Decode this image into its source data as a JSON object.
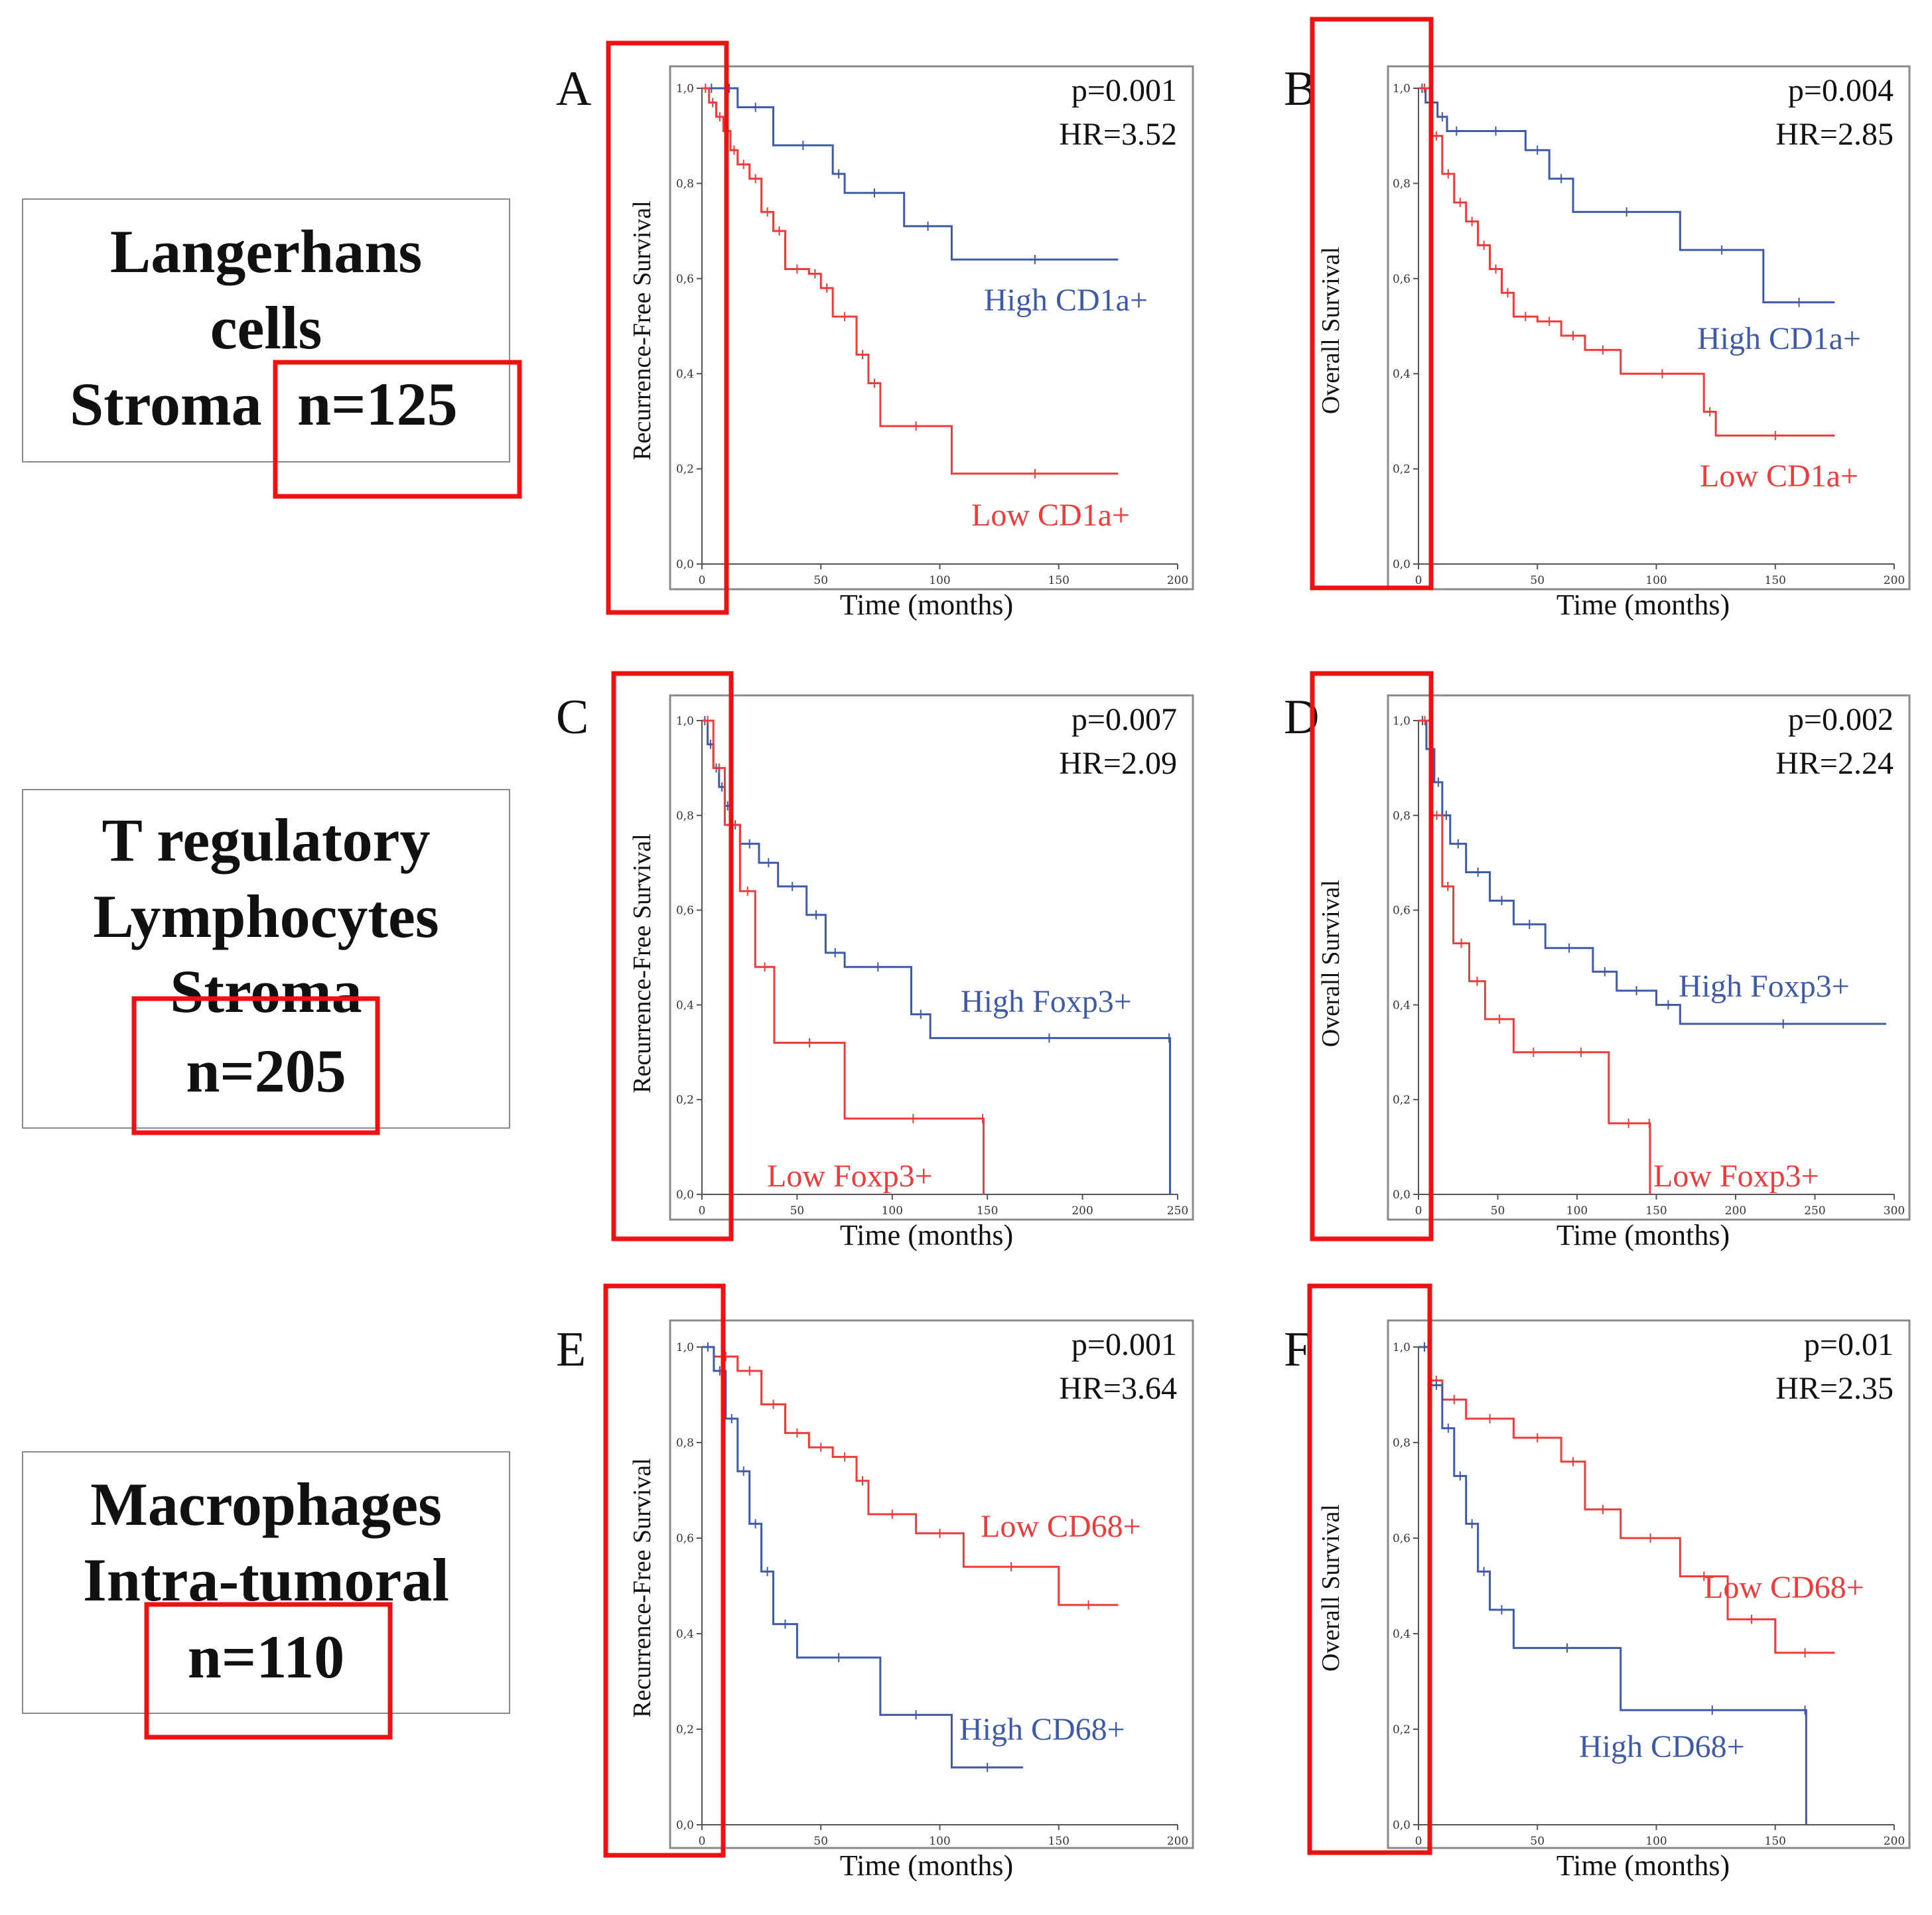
{
  "colors": {
    "red": "#ee3b3b",
    "blue": "#3f5aa6",
    "highlight": "#ee1111",
    "frame": "#8a8a8a"
  },
  "rows": [
    {
      "lines": [
        "Langerhans",
        "cells",
        "Stroma"
      ],
      "n": "n=125"
    },
    {
      "lines": [
        "T regulatory",
        "Lymphocytes",
        "Stroma"
      ],
      "n": "n=205"
    },
    {
      "lines": [
        "Macrophages",
        "Intra-tumoral"
      ],
      "n": "n=110"
    }
  ],
  "chart_data": [
    {
      "panel": "A",
      "type": "line",
      "ylabel": "Recurrence-Free Survival",
      "xlabel": "Time (months)",
      "p": "p=0.001",
      "hr": "HR=3.52",
      "xlim": [
        0,
        200
      ],
      "xticks": [
        "0",
        "50",
        "100",
        "150",
        "200"
      ],
      "ylim": [
        0,
        1
      ],
      "yticks": [
        "0,0",
        "0,2",
        "0,4",
        "0,6",
        "0,8",
        "1,0"
      ],
      "series": [
        {
          "name": "High CD1a+",
          "color": "blue",
          "x": [
            0,
            8,
            15,
            30,
            55,
            60,
            85,
            105,
            175
          ],
          "y": [
            1.0,
            1.0,
            0.96,
            0.88,
            0.82,
            0.78,
            0.71,
            0.64,
            0.64
          ]
        },
        {
          "name": "Low CD1a+",
          "color": "red",
          "x": [
            0,
            3,
            6,
            9,
            12,
            15,
            20,
            25,
            30,
            35,
            45,
            50,
            55,
            65,
            70,
            75,
            105,
            175
          ],
          "y": [
            1.0,
            0.97,
            0.94,
            0.91,
            0.87,
            0.84,
            0.81,
            0.74,
            0.7,
            0.62,
            0.61,
            0.58,
            0.52,
            0.44,
            0.38,
            0.29,
            0.19,
            0.19
          ]
        }
      ]
    },
    {
      "panel": "B",
      "type": "line",
      "ylabel": "Overall Survival",
      "xlabel": "Time (months)",
      "p": "p=0.004",
      "hr": "HR=2.85",
      "xlim": [
        0,
        200
      ],
      "xticks": [
        "0",
        "50",
        "100",
        "150",
        "200"
      ],
      "ylim": [
        0,
        1
      ],
      "yticks": [
        "0,0",
        "0,2",
        "0,4",
        "0,6",
        "0,8",
        "1,0"
      ],
      "series": [
        {
          "name": "High CD1a+",
          "color": "blue",
          "x": [
            0,
            3,
            8,
            12,
            20,
            45,
            55,
            65,
            110,
            145,
            175
          ],
          "y": [
            1.0,
            0.97,
            0.94,
            0.91,
            0.91,
            0.87,
            0.81,
            0.74,
            0.66,
            0.55,
            0.55
          ]
        },
        {
          "name": "Low CD1a+",
          "color": "red",
          "x": [
            0,
            5,
            10,
            15,
            20,
            25,
            30,
            35,
            40,
            50,
            60,
            70,
            85,
            120,
            125,
            175
          ],
          "y": [
            1.0,
            0.9,
            0.82,
            0.76,
            0.72,
            0.67,
            0.62,
            0.57,
            0.52,
            0.51,
            0.48,
            0.45,
            0.4,
            0.32,
            0.27,
            0.27
          ]
        }
      ]
    },
    {
      "panel": "C",
      "type": "line",
      "ylabel": "Recurrence-Free Survival",
      "xlabel": "Time (months)",
      "p": "p=0.007",
      "hr": "HR=2.09",
      "xlim": [
        0,
        250
      ],
      "xticks": [
        "0",
        "50",
        "100",
        "150",
        "200",
        "250"
      ],
      "ylim": [
        0,
        1
      ],
      "yticks": [
        "0,0",
        "0,2",
        "0,4",
        "0,6",
        "0,8",
        "1,0"
      ],
      "series": [
        {
          "name": "High Foxp3+",
          "color": "blue",
          "x": [
            0,
            3,
            6,
            9,
            12,
            15,
            20,
            30,
            40,
            55,
            65,
            75,
            110,
            120,
            245,
            246
          ],
          "y": [
            1.0,
            0.95,
            0.9,
            0.86,
            0.82,
            0.78,
            0.74,
            0.7,
            0.65,
            0.59,
            0.51,
            0.48,
            0.38,
            0.33,
            0.33,
            0.0
          ]
        },
        {
          "name": "Low Foxp3+",
          "color": "red",
          "x": [
            0,
            6,
            12,
            20,
            28,
            38,
            75,
            147,
            148
          ],
          "y": [
            1.0,
            0.9,
            0.78,
            0.64,
            0.48,
            0.32,
            0.16,
            0.16,
            0.0
          ]
        }
      ]
    },
    {
      "panel": "D",
      "type": "line",
      "ylabel": "Overall Survival",
      "xlabel": "Time (months)",
      "p": "p=0.002",
      "hr": "HR=2.24",
      "xlim": [
        0,
        300
      ],
      "xticks": [
        "0",
        "50",
        "100",
        "150",
        "200",
        "250",
        "300"
      ],
      "ylim": [
        0,
        1
      ],
      "yticks": [
        "0,0",
        "0,2",
        "0,4",
        "0,6",
        "0,8",
        "1,0"
      ],
      "series": [
        {
          "name": "High Foxp3+",
          "color": "blue",
          "x": [
            0,
            5,
            10,
            15,
            20,
            30,
            45,
            60,
            80,
            110,
            125,
            150,
            165,
            295
          ],
          "y": [
            1.0,
            0.94,
            0.87,
            0.8,
            0.74,
            0.68,
            0.62,
            0.57,
            0.52,
            0.47,
            0.43,
            0.4,
            0.36,
            0.36
          ]
        },
        {
          "name": "Low Foxp3+",
          "color": "red",
          "x": [
            0,
            8,
            15,
            22,
            32,
            42,
            60,
            85,
            120,
            145,
            146
          ],
          "y": [
            1.0,
            0.8,
            0.65,
            0.53,
            0.45,
            0.37,
            0.3,
            0.3,
            0.15,
            0.15,
            0.0
          ]
        }
      ]
    },
    {
      "panel": "E",
      "type": "line",
      "ylabel": "Recurrence-Free Survival",
      "xlabel": "Time (months)",
      "p": "p=0.001",
      "hr": "HR=3.64",
      "xlim": [
        0,
        200
      ],
      "xticks": [
        "0",
        "50",
        "100",
        "150",
        "200"
      ],
      "ylim": [
        0,
        1
      ],
      "yticks": [
        "0,0",
        "0,2",
        "0,4",
        "0,6",
        "0,8",
        "1,0"
      ],
      "series": [
        {
          "name": "Low CD68+",
          "color": "red",
          "x": [
            0,
            5,
            15,
            25,
            35,
            45,
            55,
            65,
            70,
            90,
            110,
            150,
            175
          ],
          "y": [
            1.0,
            0.98,
            0.95,
            0.88,
            0.82,
            0.79,
            0.77,
            0.72,
            0.65,
            0.61,
            0.54,
            0.46,
            0.46
          ]
        },
        {
          "name": "High CD68+",
          "color": "blue",
          "x": [
            0,
            5,
            10,
            15,
            20,
            25,
            30,
            40,
            75,
            105,
            135
          ],
          "y": [
            1.0,
            0.95,
            0.85,
            0.74,
            0.63,
            0.53,
            0.42,
            0.35,
            0.23,
            0.12,
            0.12
          ]
        }
      ]
    },
    {
      "panel": "F",
      "type": "line",
      "ylabel": "Overall Survival",
      "xlabel": "Time (months)",
      "p": "p=0.01",
      "hr": "HR=2.35",
      "xlim": [
        0,
        200
      ],
      "xticks": [
        "0",
        "50",
        "100",
        "150",
        "200"
      ],
      "ylim": [
        0,
        1
      ],
      "yticks": [
        "0,0",
        "0,2",
        "0,4",
        "0,6",
        "0,8",
        "1,0"
      ],
      "series": [
        {
          "name": "Low CD68+",
          "color": "red",
          "x": [
            0,
            5,
            10,
            20,
            40,
            60,
            70,
            85,
            110,
            130,
            150,
            175
          ],
          "y": [
            1.0,
            0.93,
            0.89,
            0.85,
            0.81,
            0.76,
            0.66,
            0.6,
            0.52,
            0.43,
            0.36,
            0.36
          ]
        },
        {
          "name": "High CD68+",
          "color": "blue",
          "x": [
            0,
            5,
            10,
            15,
            20,
            25,
            30,
            40,
            85,
            162,
            163
          ],
          "y": [
            1.0,
            0.92,
            0.83,
            0.73,
            0.63,
            0.53,
            0.45,
            0.37,
            0.24,
            0.24,
            0.0
          ]
        }
      ]
    }
  ]
}
